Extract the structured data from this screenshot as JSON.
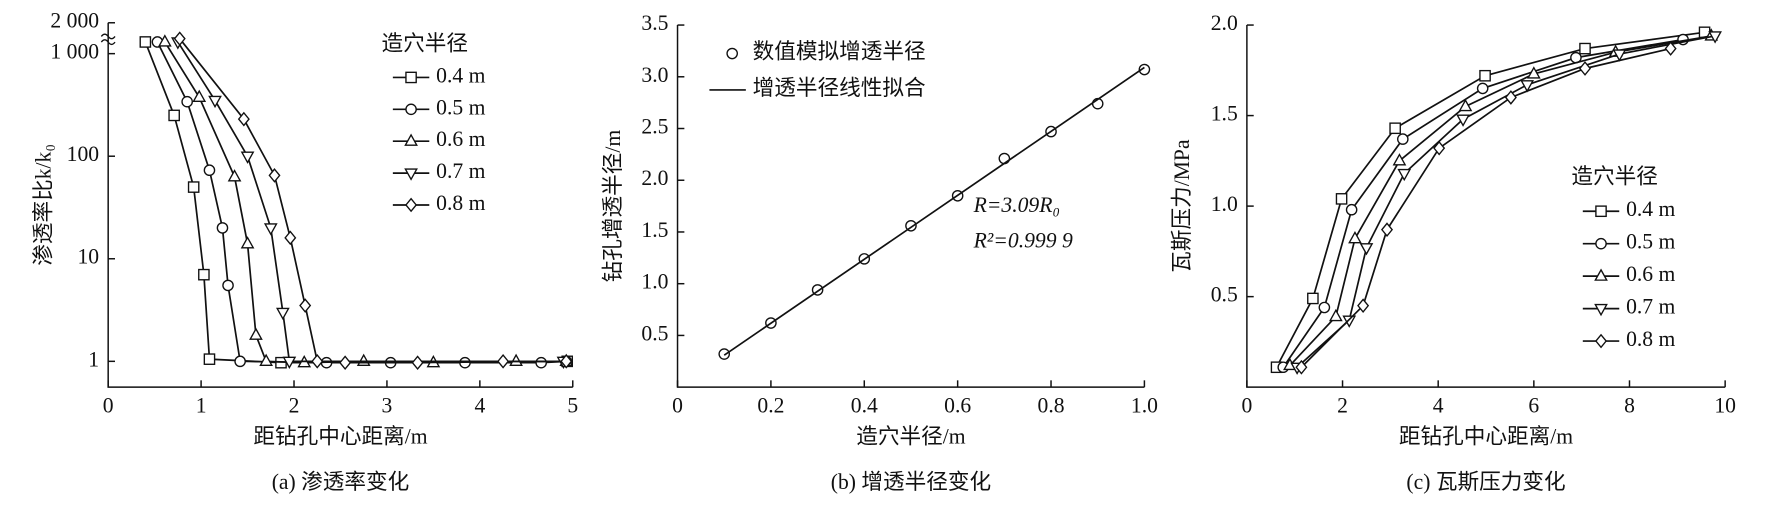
{
  "chart_data": [
    {
      "type": "line",
      "caption": "(a) 渗透率变化",
      "xlabel": "距钻孔中心距离/m",
      "ylabel": "渗透率比k/k₀",
      "log_y": true,
      "xlim": [
        0,
        5
      ],
      "xticks": [
        0,
        1,
        2,
        3,
        4,
        5
      ],
      "ylim": [
        0.56,
        2000
      ],
      "yticks": [
        1,
        10,
        100,
        {
          "value": 1000,
          "label": "1 000"
        },
        {
          "value": 2000,
          "label": "2 000"
        }
      ],
      "legend_title": "造穴半径",
      "legend": "upper right",
      "series": [
        {
          "name": "0.4 m",
          "marker": "square",
          "line": true,
          "color": "#111",
          "x": [
            0.4,
            0.71,
            0.92,
            1.03,
            1.09,
            1.86,
            4.94
          ],
          "values": [
            1300,
            250,
            50,
            7,
            1.05,
            0.97,
            1
          ]
        },
        {
          "name": "0.5 m",
          "marker": "circle",
          "line": true,
          "color": "#111",
          "x": [
            0.53,
            0.85,
            1.09,
            1.23,
            1.29,
            1.42,
            2.35,
            3.04,
            3.84,
            4.66,
            4.93
          ],
          "values": [
            1300,
            340,
            73,
            20,
            5.5,
            1,
            0.97,
            0.97,
            0.97,
            0.97,
            1
          ]
        },
        {
          "name": "0.6 m",
          "marker": "triangle-up",
          "line": true,
          "color": "#111",
          "x": [
            0.61,
            0.98,
            1.36,
            1.5,
            1.59,
            1.7,
            2.11,
            2.75,
            3.5,
            4.39,
            4.93
          ],
          "values": [
            1300,
            375,
            63,
            14,
            1.8,
            1,
            0.97,
            1,
            0.97,
            1,
            1
          ]
        },
        {
          "name": "0.7 m",
          "marker": "triangle-down",
          "line": true,
          "color": "#111",
          "x": [
            0.75,
            1.15,
            1.5,
            1.75,
            1.88,
            1.95,
            4.9
          ],
          "values": [
            1300,
            350,
            100,
            20,
            3,
            1,
            1
          ]
        },
        {
          "name": "0.8 m",
          "marker": "diamond",
          "line": true,
          "color": "#111",
          "x": [
            0.77,
            1.46,
            1.79,
            1.96,
            2.12,
            2.25,
            2.55,
            3.33,
            4.25,
            4.93
          ],
          "values": [
            1400,
            230,
            65,
            16,
            3.5,
            1,
            0.97,
            0.97,
            1,
            1
          ]
        }
      ]
    },
    {
      "type": "scatter",
      "caption": "(b) 增透半径变化",
      "xlabel": "造穴半径/m",
      "ylabel": "钻孔增透半径/m",
      "xlim": [
        0,
        1
      ],
      "xticks": [
        0,
        0.2,
        0.4,
        0.6,
        0.8,
        {
          "value": 1,
          "label": "1.0"
        }
      ],
      "ylim": [
        0,
        3.5
      ],
      "yticks": [
        0.5,
        {
          "value": 1,
          "label": "1.0"
        },
        1.5,
        {
          "value": 2,
          "label": "2.0"
        },
        2.5,
        {
          "value": 3,
          "label": "3.0"
        },
        3.5
      ],
      "legend": "upper left",
      "annotations": [
        "R=3.09R₀",
        "R²=0.999 9"
      ],
      "series": [
        {
          "name": "数值模拟增透半径",
          "marker": "circle",
          "color": "#111",
          "x": [
            0.1,
            0.2,
            0.3,
            0.4,
            0.5,
            0.6,
            0.7,
            0.8,
            0.9,
            1.0
          ],
          "values": [
            0.32,
            0.62,
            0.94,
            1.24,
            1.56,
            1.85,
            2.21,
            2.47,
            2.74,
            3.07
          ]
        },
        {
          "name": "增透半径线性拟合",
          "line": true,
          "color": "#111",
          "x": [
            0.1,
            1.0
          ],
          "values": [
            0.309,
            3.09
          ]
        }
      ]
    },
    {
      "type": "line",
      "caption": "(c) 瓦斯压力变化",
      "xlabel": "距钻孔中心距离/m",
      "ylabel": "瓦斯压力/MPa",
      "xlim": [
        0,
        10
      ],
      "xticks": [
        0,
        2,
        4,
        6,
        8,
        10
      ],
      "ylim": [
        0,
        2
      ],
      "yticks": [
        0.5,
        {
          "value": 1,
          "label": "1.0"
        },
        1.5,
        {
          "value": 2,
          "label": "2.0"
        }
      ],
      "legend_title": "造穴半径",
      "legend": "center right",
      "series": [
        {
          "name": "0.4 m",
          "marker": "square",
          "line": true,
          "color": "#111",
          "x": [
            0.62,
            1.38,
            1.98,
            3.1,
            4.98,
            7.07,
            9.57
          ],
          "values": [
            0.11,
            0.49,
            1.04,
            1.43,
            1.72,
            1.87,
            1.96
          ]
        },
        {
          "name": "0.5 m",
          "marker": "circle",
          "line": true,
          "color": "#111",
          "x": [
            0.76,
            1.62,
            2.19,
            3.26,
            4.93,
            6.88,
            9.12
          ],
          "values": [
            0.11,
            0.44,
            0.98,
            1.37,
            1.65,
            1.82,
            1.92
          ]
        },
        {
          "name": "0.6 m",
          "marker": "triangle-up",
          "line": true,
          "color": "#111",
          "x": [
            0.9,
            1.86,
            2.26,
            3.19,
            4.57,
            6.0,
            7.71,
            9.71
          ],
          "values": [
            0.12,
            0.39,
            0.82,
            1.25,
            1.55,
            1.73,
            1.85,
            1.94
          ]
        },
        {
          "name": "0.7 m",
          "marker": "triangle-down",
          "line": true,
          "color": "#111",
          "x": [
            1.05,
            2.14,
            2.5,
            3.29,
            4.52,
            5.86,
            7.79,
            9.79
          ],
          "values": [
            0.11,
            0.37,
            0.77,
            1.18,
            1.48,
            1.67,
            1.84,
            1.94
          ]
        },
        {
          "name": "0.8 m",
          "marker": "diamond",
          "line": true,
          "color": "#111",
          "x": [
            1.14,
            2.43,
            2.93,
            4.02,
            5.52,
            7.07,
            8.86
          ],
          "values": [
            0.11,
            0.45,
            0.87,
            1.32,
            1.6,
            1.76,
            1.87
          ]
        }
      ]
    }
  ]
}
